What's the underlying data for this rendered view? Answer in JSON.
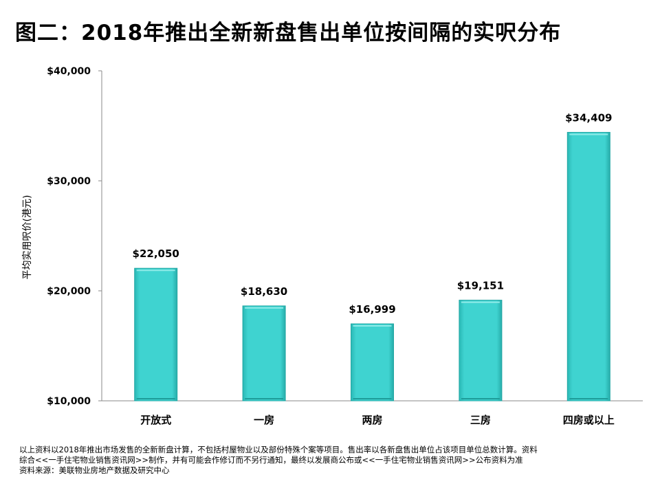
{
  "title": "图二：2018年推出全新新盘售出单位按间隔的实呎分布",
  "chart_data": {
    "type": "bar",
    "categories": [
      "开放式",
      "一房",
      "两房",
      "三房",
      "四房或以上"
    ],
    "values": [
      22050,
      18630,
      16999,
      19151,
      34409
    ],
    "value_labels": [
      "$22,050",
      "$18,630",
      "$16,999",
      "$19,151",
      "$34,409"
    ],
    "ylabel": "平均实用呎价(港元)",
    "xlabel": "",
    "ylim": [
      10000,
      40000
    ],
    "yticks": [
      10000,
      20000,
      30000,
      40000
    ],
    "ytick_labels": [
      "$10,000",
      "$20,000",
      "$30,000",
      "$40,000"
    ],
    "bar_color": "#3FD3D0",
    "grid": false,
    "legend": "none"
  },
  "footnote": {
    "line1": "以上资料以2018年推出市场发售的全新新盘计算，不包括村屋物业以及部份特殊个案等项目。售出率以各新盘售出单位占该项目单位总数计算。资料",
    "line2": "综合<<一手住宅物业销售资讯网>>制作，并有可能会作修订而不另行通知，最终以发展商公布或<<一手住宅物业销售资讯网>>公布资料为准",
    "line3": "资料来源：美联物业房地产数据及研究中心"
  }
}
